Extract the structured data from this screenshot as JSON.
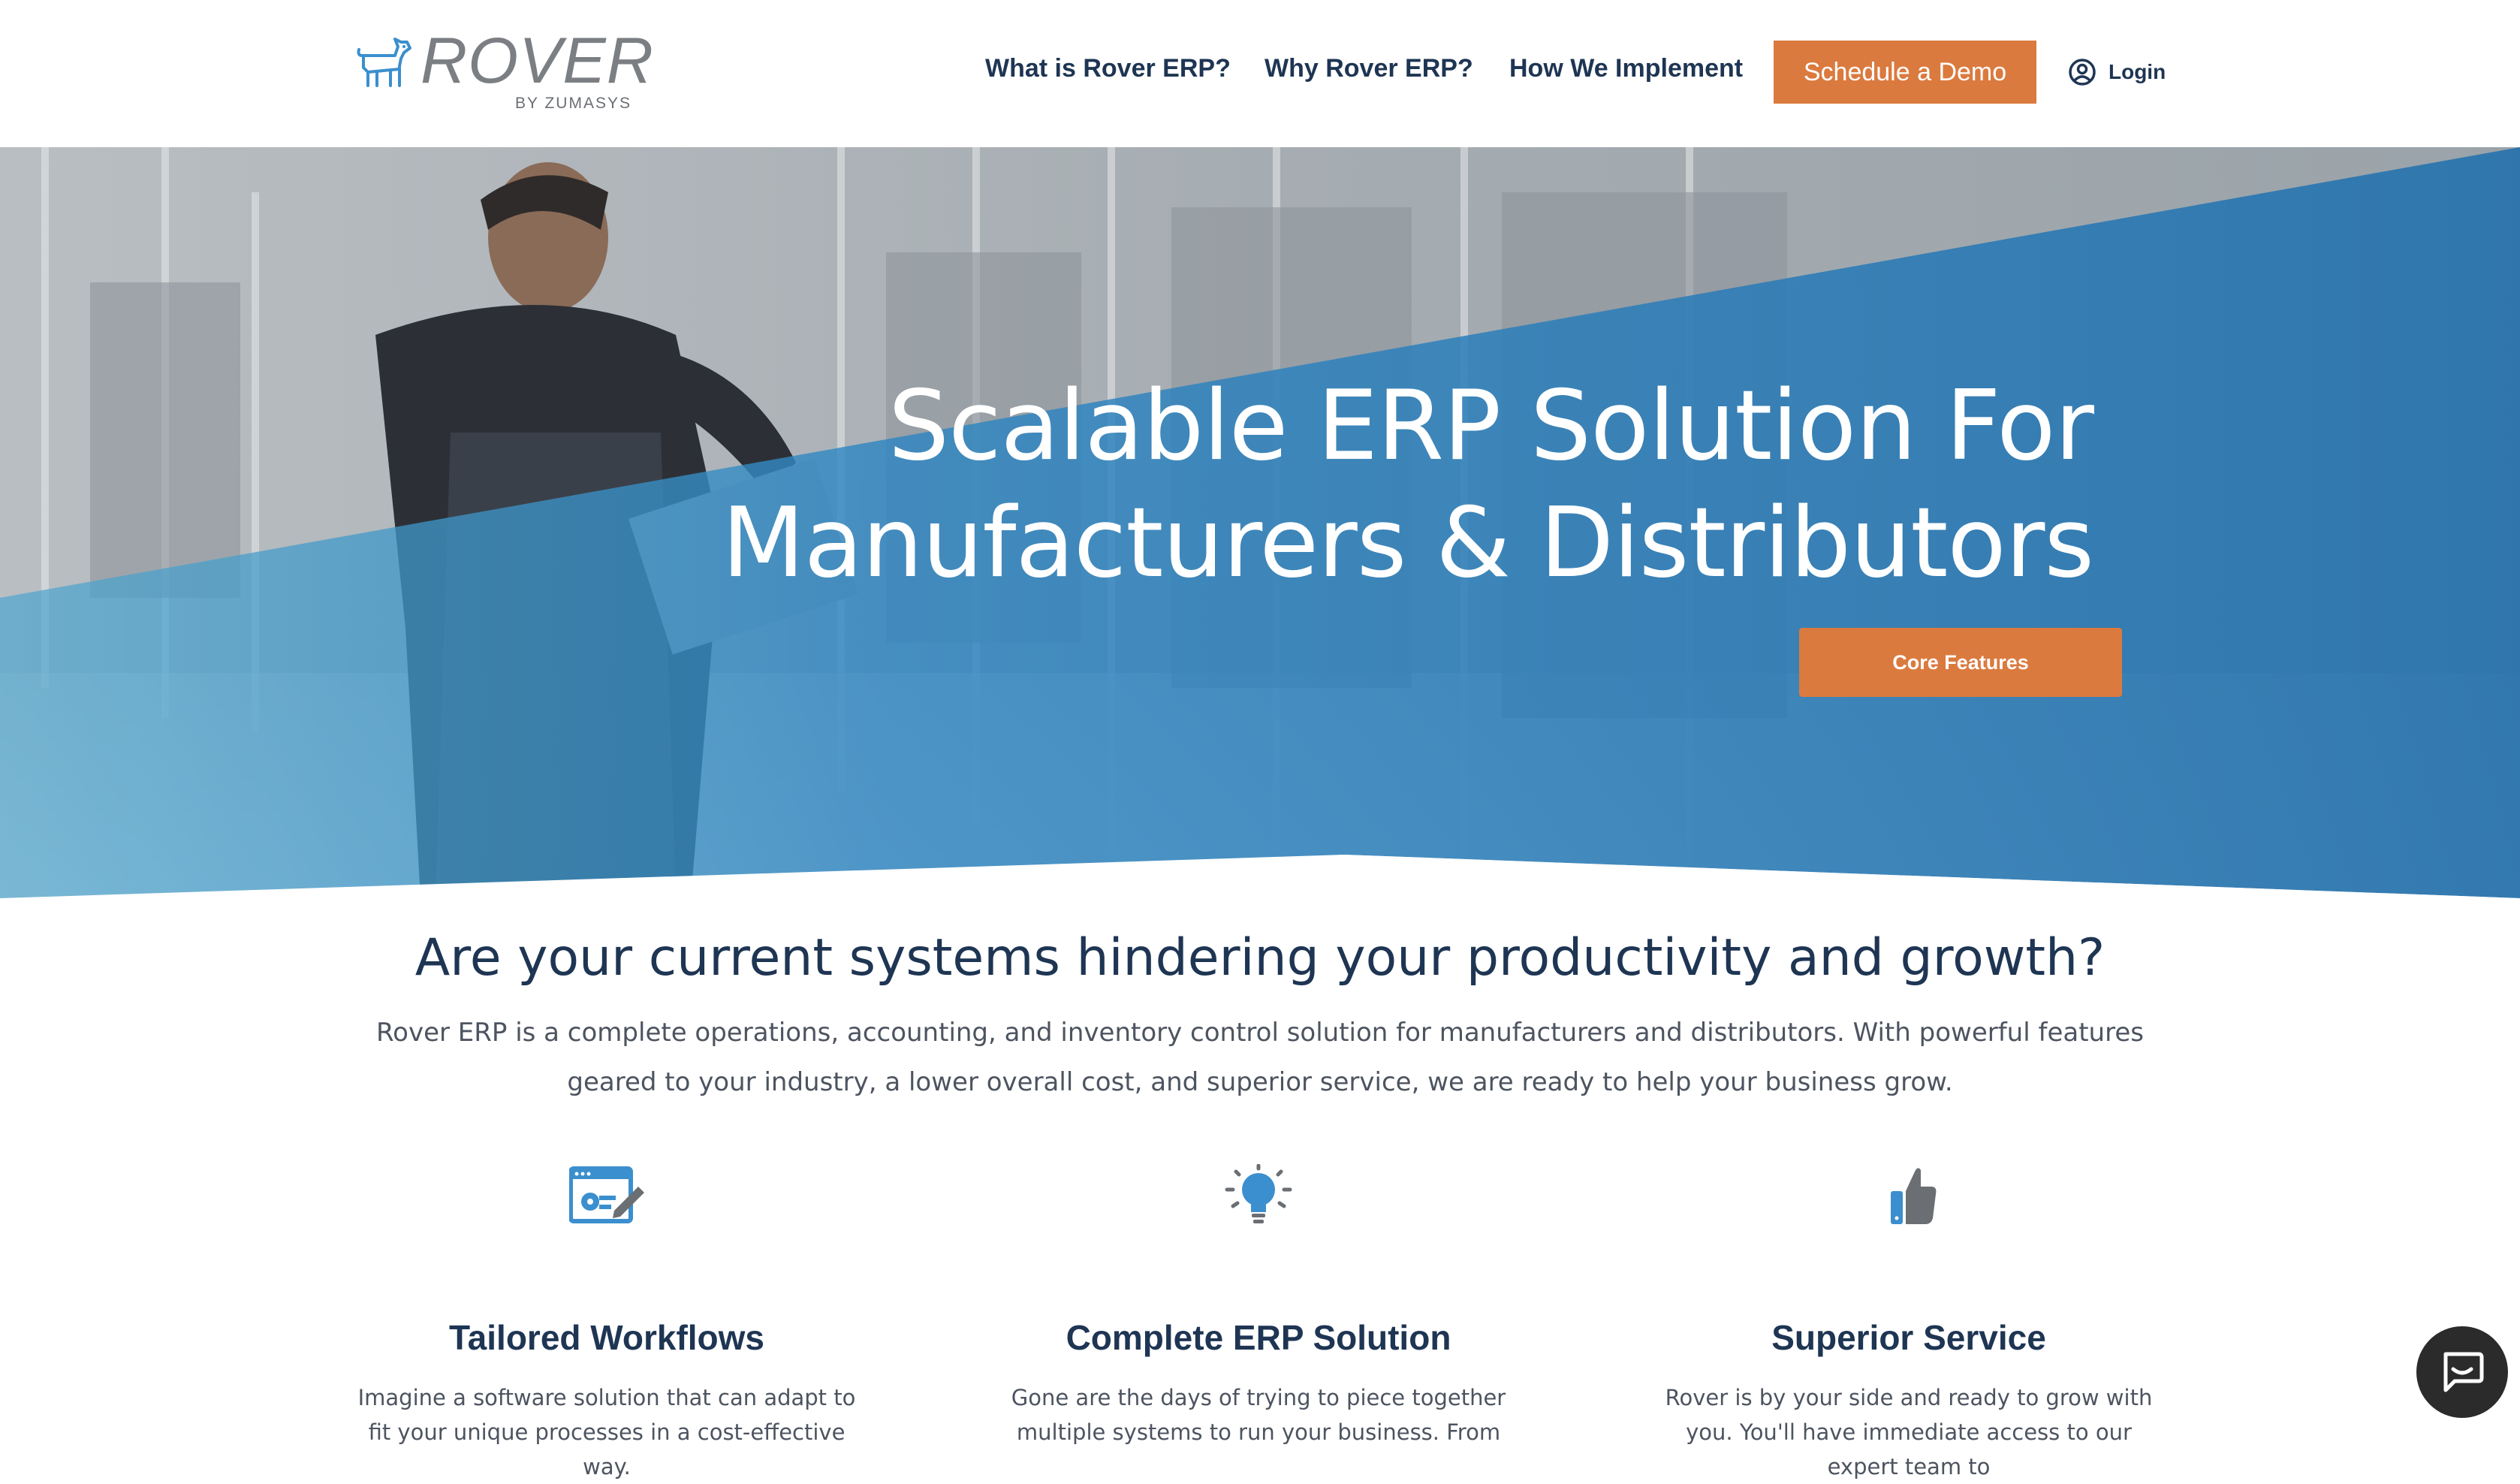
{
  "brand": {
    "name": "ROVER",
    "sub": "BY ZUMASYS"
  },
  "nav": {
    "items": [
      {
        "label": "What is Rover ERP?"
      },
      {
        "label": "Why Rover ERP?"
      },
      {
        "label": "How We Implement"
      }
    ],
    "cta_label": "Schedule a Demo",
    "login_label": "Login"
  },
  "hero": {
    "title_line1": "Scalable ERP Solution For",
    "title_line2": "Manufacturers & Distributors",
    "button_label": "Core Features"
  },
  "intro": {
    "heading": "Are your current systems hindering your productivity and growth?",
    "text": "Rover ERP is a complete operations, accounting, and inventory control solution for manufacturers and distributors. With powerful features geared to your industry, a lower overall cost, and superior service, we are ready to help your business grow."
  },
  "features": [
    {
      "icon": "workflow-settings-icon",
      "title": "Tailored Workflows",
      "text": "Imagine a software solution that can adapt to fit your unique processes in a cost-effective way."
    },
    {
      "icon": "lightbulb-icon",
      "title": "Complete ERP Solution",
      "text": "Gone are the days of trying to piece together multiple systems to run your business. From"
    },
    {
      "icon": "thumbs-up-icon",
      "title": "Superior Service",
      "text": "Rover is by your side and ready to grow with you. You'll have immediate access to our expert team to"
    }
  ],
  "colors": {
    "accent": "#db7a3f",
    "navy": "#1e3553",
    "hero_blue": "#2f7fb8",
    "icon_blue": "#3b8fce",
    "icon_gray": "#6b6f74"
  }
}
